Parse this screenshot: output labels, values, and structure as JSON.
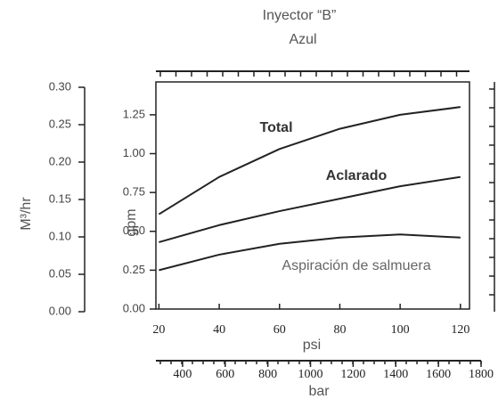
{
  "chart_data": {
    "type": "line",
    "title": "Inyector “B”",
    "subtitle": "Azul",
    "xlabel": "psi",
    "ylabel": "gpm",
    "y2label": "M³/hr",
    "x2label": "bar",
    "x": [
      20,
      40,
      60,
      80,
      100,
      120
    ],
    "series": [
      {
        "name": "Total",
        "color": "#222222",
        "values": [
          0.61,
          0.85,
          1.03,
          1.16,
          1.25,
          1.3
        ]
      },
      {
        "name": "Aclarado",
        "color": "#222222",
        "values": [
          0.43,
          0.54,
          0.63,
          0.71,
          0.79,
          0.85
        ]
      },
      {
        "name": "Aspiración de salmuera",
        "color": "#222222",
        "values": [
          0.25,
          0.35,
          0.42,
          0.46,
          0.48,
          0.46
        ]
      }
    ],
    "xlim": [
      19,
      123
    ],
    "xticks": [
      20,
      40,
      60,
      80,
      100,
      120
    ],
    "ylim": [
      0,
      1.45
    ],
    "yticks": [
      {
        "value": 0,
        "label": "0.00"
      },
      0.25,
      {
        "value": 0.5,
        "label": "0.50"
      },
      0.75,
      {
        "value": 1,
        "label": "1.00"
      },
      1.25
    ],
    "y2lim": [
      0,
      0.3
    ],
    "y2ticks": [
      {
        "value": 0,
        "label": "0.00"
      },
      0.05,
      {
        "value": 0.1,
        "label": "0.10"
      },
      0.15,
      {
        "value": 0.2,
        "label": "0.20"
      },
      0.25,
      {
        "value": 0.3,
        "label": "0.30"
      }
    ],
    "x2lim": [
      275,
      1800
    ],
    "x2ticks": [
      400,
      600,
      800,
      1000,
      1200,
      1400,
      1600,
      1800
    ]
  }
}
